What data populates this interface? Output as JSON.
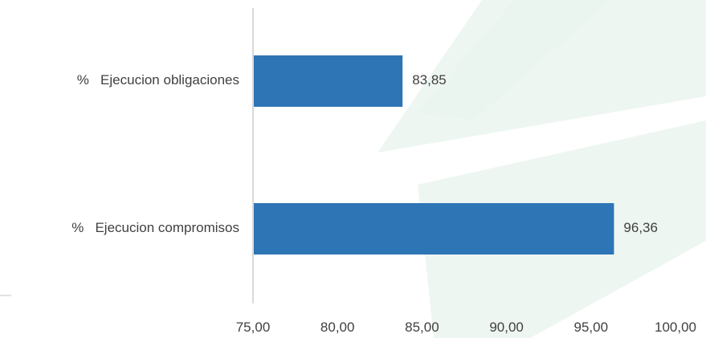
{
  "chart_data": {
    "type": "bar",
    "orientation": "horizontal",
    "categories": [
      "%   Ejecucion obligaciones",
      "%   Ejecucion compromisos"
    ],
    "values": [
      83.85,
      96.36
    ],
    "value_labels": [
      "83,85",
      "96,36"
    ],
    "xlim": [
      75,
      100
    ],
    "xticks": [
      75,
      80,
      85,
      90,
      95,
      100
    ],
    "xtick_labels": [
      "75,00",
      "80,00",
      "85,00",
      "90,00",
      "95,00",
      "100,00"
    ],
    "grid": false,
    "legend": "none",
    "bar_color": "#2E75B6",
    "text_color": "#404040",
    "axis_color": "#D9D9D9",
    "background_watermark_color": "#EAF4EE"
  }
}
